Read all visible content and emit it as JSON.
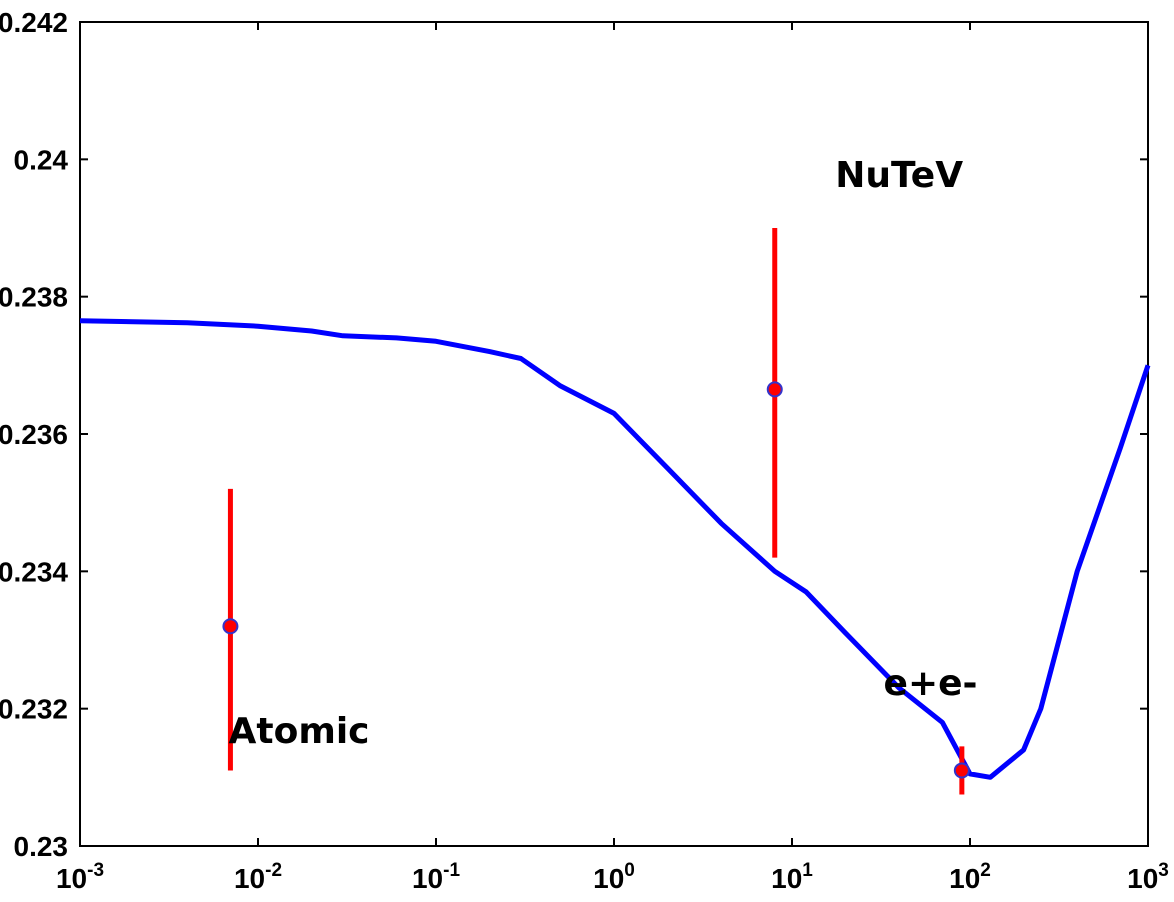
{
  "chart_data": {
    "type": "line",
    "title": "",
    "xlabel": "",
    "ylabel": "",
    "xscale": "log",
    "xlim": [
      0.001,
      1000
    ],
    "ylim": [
      0.23,
      0.242
    ],
    "grid": false,
    "x_ticks": [
      {
        "base": "10",
        "exp": "-3",
        "value": 0.001
      },
      {
        "base": "10",
        "exp": "-2",
        "value": 0.01
      },
      {
        "base": "10",
        "exp": "-1",
        "value": 0.1
      },
      {
        "base": "10",
        "exp": "0",
        "value": 1
      },
      {
        "base": "10",
        "exp": "1",
        "value": 10
      },
      {
        "base": "10",
        "exp": "2",
        "value": 100
      },
      {
        "base": "10",
        "exp": "3",
        "value": 1000
      }
    ],
    "y_ticks": [
      {
        "label": "0.23",
        "value": 0.23
      },
      {
        "label": "0.232",
        "value": 0.232
      },
      {
        "label": "0.234",
        "value": 0.234
      },
      {
        "label": "0.236",
        "value": 0.236
      },
      {
        "label": "0.238",
        "value": 0.238
      },
      {
        "label": "0.24",
        "value": 0.24
      },
      {
        "label": "0.242",
        "value": 0.242
      }
    ],
    "series": [
      {
        "color": "#0000ff",
        "points": [
          [
            0.001,
            0.23765
          ],
          [
            0.004,
            0.23762
          ],
          [
            0.01,
            0.23757
          ],
          [
            0.02,
            0.2375
          ],
          [
            0.03,
            0.23743
          ],
          [
            0.06,
            0.2374
          ],
          [
            0.1,
            0.23735
          ],
          [
            0.2,
            0.2372
          ],
          [
            0.3,
            0.2371
          ],
          [
            0.5,
            0.2367
          ],
          [
            1,
            0.2363
          ],
          [
            2,
            0.2355
          ],
          [
            4,
            0.2347
          ],
          [
            8,
            0.234
          ],
          [
            12,
            0.2337
          ],
          [
            20,
            0.2331
          ],
          [
            40,
            0.2323
          ],
          [
            70,
            0.2318
          ],
          [
            100,
            0.23105
          ],
          [
            130,
            0.231
          ],
          [
            200,
            0.2314
          ],
          [
            250,
            0.232
          ],
          [
            400,
            0.234
          ],
          [
            700,
            0.2358
          ],
          [
            1000,
            0.237
          ]
        ]
      }
    ],
    "measurements": [
      {
        "label": "Atomic",
        "x": 0.007,
        "y": 0.2332,
        "y_low": 0.2311,
        "y_high": 0.2352,
        "color": "#ff0000",
        "marker_color": "#3333cc"
      },
      {
        "label": "NuTeV",
        "x": 8,
        "y": 0.23665,
        "y_low": 0.2342,
        "y_high": 0.239,
        "color": "#ff0000",
        "marker_color": "#3333cc"
      },
      {
        "label": "e+e-",
        "x": 90,
        "y": 0.2311,
        "y_low": 0.23075,
        "y_high": 0.23145,
        "color": "#ff0000",
        "marker_color": "#3333cc"
      }
    ],
    "annotations": [
      {
        "text": "NuTeV",
        "x": 40,
        "y": 0.2396
      },
      {
        "text": "e+e-",
        "x": 60,
        "y": 0.2322
      },
      {
        "text": "Atomic",
        "x": 0.017,
        "y": 0.2315
      }
    ]
  }
}
